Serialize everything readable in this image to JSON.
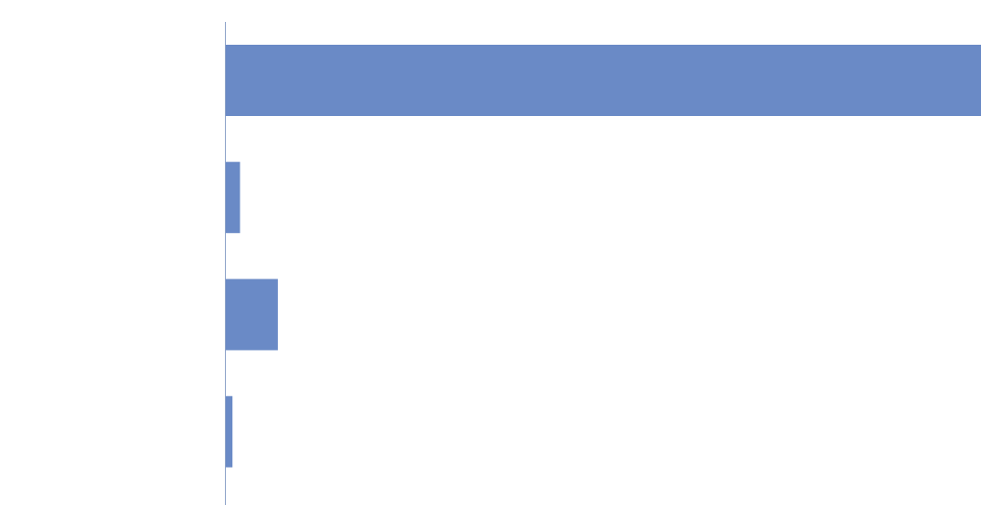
{
  "chart_data": {
    "type": "bar",
    "orientation": "horizontal",
    "title": "",
    "xlabel": "",
    "ylabel": "",
    "categories": [
      "",
      "",
      "",
      ""
    ],
    "values": [
      100,
      2,
      7,
      1
    ],
    "xlim": [
      0,
      100
    ],
    "grid": false,
    "legend": "none",
    "colors": {
      "bar": "#6a8ac6",
      "axis": "#8da2c8",
      "background": "#ffffff"
    }
  }
}
